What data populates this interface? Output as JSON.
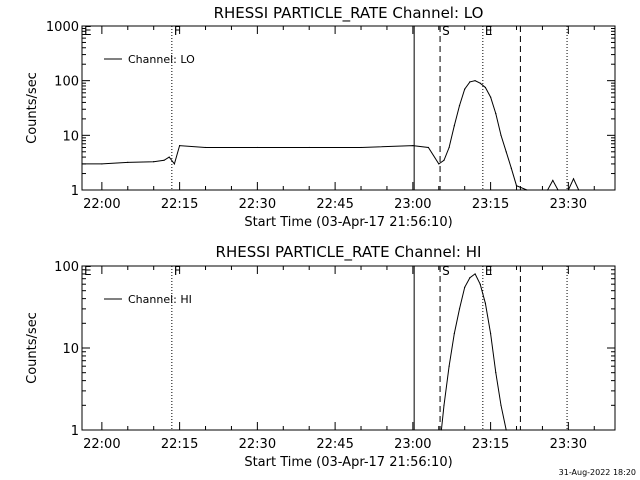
{
  "chart_data": [
    {
      "type": "line",
      "title": "RHESSI PARTICLE_RATE Channel: LO",
      "xlabel": "Start Time (03-Apr-17 21:56:10)",
      "ylabel": "Counts/sec",
      "yscale": "log",
      "ylim": [
        1,
        1000
      ],
      "xlim": [
        "21:56:10",
        "23:39:00"
      ],
      "xticks": [
        "22:00",
        "22:15",
        "22:30",
        "22:45",
        "23:00",
        "23:15",
        "23:30"
      ],
      "yticks": [
        "1",
        "10",
        "100",
        "1000"
      ],
      "legend": {
        "label": "Channel: LO",
        "placement": "top-left"
      },
      "markers": [
        {
          "label": "E",
          "time": "21:56:10",
          "style": "dotted"
        },
        {
          "label": "F",
          "time": "22:13:30",
          "style": "dotted"
        },
        {
          "time": "23:00:15",
          "style": "solid"
        },
        {
          "label": "S",
          "time": "23:05:15",
          "style": "dashed"
        },
        {
          "label": "E",
          "time": "23:13:30",
          "style": "dotted"
        },
        {
          "time": "23:20:45",
          "style": "dashed"
        },
        {
          "time": "23:29:45",
          "style": "dotted"
        }
      ],
      "series": [
        {
          "name": "Channel: LO",
          "x": [
            "21:56:10",
            "22:00",
            "22:05",
            "22:10",
            "22:12",
            "22:13",
            "22:14",
            "22:15",
            "22:20",
            "22:30",
            "22:40",
            "22:50",
            "23:00",
            "23:03",
            "23:05",
            "23:06",
            "23:07",
            "23:08",
            "23:09",
            "23:10",
            "23:11",
            "23:12",
            "23:13",
            "23:14",
            "23:15",
            "23:16",
            "23:17",
            "23:18",
            "23:19",
            "23:20",
            "23:22",
            "23:26",
            "23:27",
            "23:28",
            "23:30",
            "23:31",
            "23:32"
          ],
          "y": [
            3,
            3,
            3.2,
            3.3,
            3.5,
            4,
            3,
            6.5,
            6,
            6,
            6,
            6,
            6.5,
            6,
            3,
            3.5,
            6,
            15,
            35,
            70,
            95,
            100,
            90,
            75,
            50,
            25,
            10,
            5,
            2.5,
            1.2,
            1,
            1,
            1.5,
            1,
            1,
            1.6,
            1
          ]
        }
      ]
    },
    {
      "type": "line",
      "title": "RHESSI PARTICLE_RATE Channel: HI",
      "xlabel": "Start Time (03-Apr-17 21:56:10)",
      "ylabel": "Counts/sec",
      "yscale": "log",
      "ylim": [
        1,
        100
      ],
      "xlim": [
        "21:56:10",
        "23:39:00"
      ],
      "xticks": [
        "22:00",
        "22:15",
        "22:30",
        "22:45",
        "23:00",
        "23:15",
        "23:30"
      ],
      "yticks": [
        "1",
        "10",
        "100"
      ],
      "legend": {
        "label": "Channel: HI",
        "placement": "top-left"
      },
      "markers": [
        {
          "label": "E",
          "time": "21:56:10",
          "style": "dotted"
        },
        {
          "label": "F",
          "time": "22:13:30",
          "style": "dotted"
        },
        {
          "time": "23:00:15",
          "style": "solid"
        },
        {
          "label": "S",
          "time": "23:05:15",
          "style": "dashed"
        },
        {
          "label": "E",
          "time": "23:13:30",
          "style": "dotted"
        },
        {
          "time": "23:20:45",
          "style": "dashed"
        },
        {
          "time": "23:29:45",
          "style": "dotted"
        }
      ],
      "series": [
        {
          "name": "Channel: HI",
          "x": [
            "23:05:30",
            "23:06",
            "23:07",
            "23:08",
            "23:09",
            "23:10",
            "23:11",
            "23:12",
            "23:13",
            "23:14",
            "23:15",
            "23:16",
            "23:17",
            "23:18"
          ],
          "y": [
            1,
            2,
            6,
            15,
            30,
            55,
            72,
            80,
            60,
            35,
            15,
            5,
            2,
            1
          ]
        }
      ]
    }
  ],
  "footer": {
    "timestamp": "31-Aug-2022 18:20"
  }
}
